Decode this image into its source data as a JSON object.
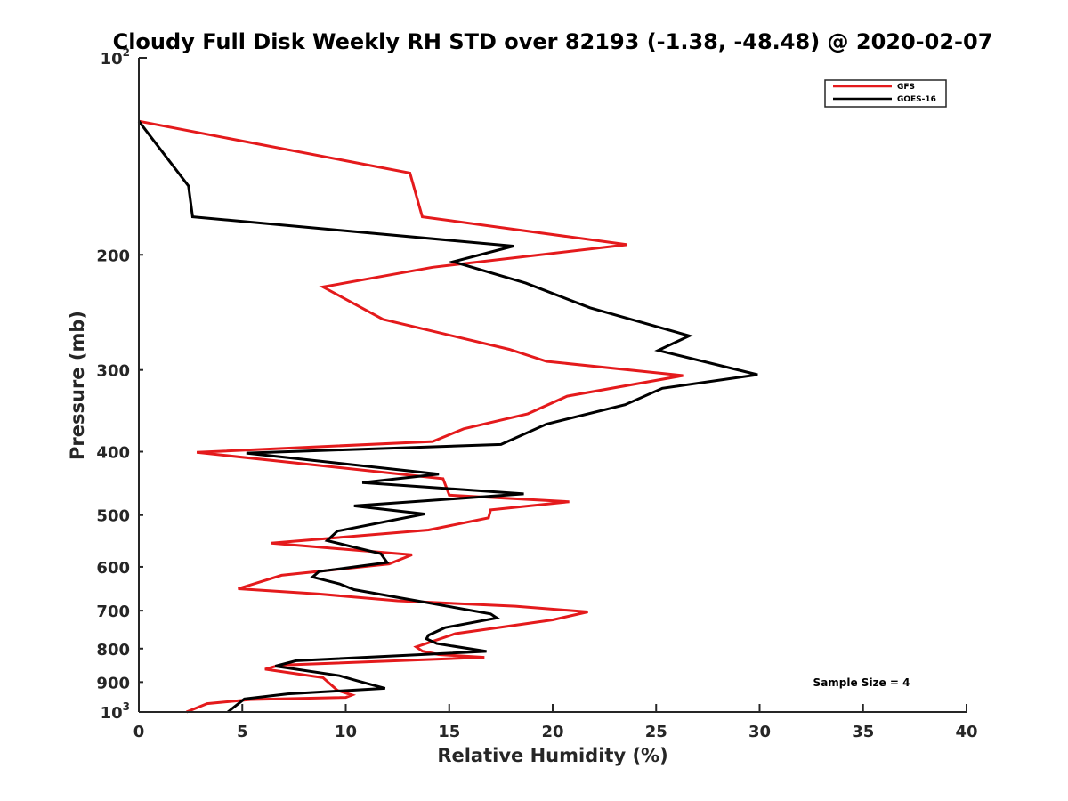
{
  "chart_data": {
    "type": "line",
    "title": "Cloudy Full Disk Weekly RH STD over 82193 (-1.38, -48.48) @ 2020-02-07",
    "xlabel": "Relative Humidity (%)",
    "ylabel": "Pressure (mb)",
    "xlim": [
      0,
      40
    ],
    "ylim": [
      100,
      1000
    ],
    "y_scale": "log",
    "y_reversed": true,
    "grid": false,
    "legend_position": "top-right",
    "x_ticks": [
      "0",
      "5",
      "10",
      "15",
      "20",
      "25",
      "30",
      "35",
      "40"
    ],
    "y_ticks": [
      {
        "value": 100,
        "base": "10",
        "exp": "2"
      },
      {
        "value": 200,
        "label": "200"
      },
      {
        "value": 300,
        "label": "300"
      },
      {
        "value": 400,
        "label": "400"
      },
      {
        "value": 500,
        "label": "500"
      },
      {
        "value": 600,
        "label": "600"
      },
      {
        "value": 700,
        "label": "700"
      },
      {
        "value": 800,
        "label": "800"
      },
      {
        "value": 900,
        "label": "900"
      },
      {
        "value": 1000,
        "base": "10",
        "exp": "3"
      }
    ],
    "annotation": "Sample Size = 4",
    "series": [
      {
        "name": "GFS",
        "color": "#e41a1c",
        "points": [
          [
            0,
            125
          ],
          [
            13.1,
            150
          ],
          [
            13.7,
            175
          ],
          [
            23.6,
            193
          ],
          [
            14.2,
            209
          ],
          [
            8.9,
            224
          ],
          [
            11.8,
            251
          ],
          [
            17.9,
            279
          ],
          [
            19.7,
            291
          ],
          [
            26.3,
            306
          ],
          [
            20.7,
            329
          ],
          [
            18.8,
            350
          ],
          [
            15.7,
            369
          ],
          [
            14.2,
            386
          ],
          [
            2.8,
            401
          ],
          [
            14.7,
            440
          ],
          [
            15.0,
            466
          ],
          [
            20.8,
            477
          ],
          [
            17.0,
            491
          ],
          [
            16.9,
            505
          ],
          [
            14.0,
            527
          ],
          [
            6.4,
            552
          ],
          [
            13.2,
            575
          ],
          [
            12.1,
            594
          ],
          [
            6.9,
            618
          ],
          [
            4.8,
            648
          ],
          [
            8.7,
            660
          ],
          [
            12.5,
            676
          ],
          [
            18.2,
            689
          ],
          [
            21.7,
            703
          ],
          [
            20.0,
            723
          ],
          [
            15.3,
            759
          ],
          [
            13.4,
            795
          ],
          [
            13.7,
            807
          ],
          [
            14.5,
            817
          ],
          [
            16.7,
            825
          ],
          [
            14.2,
            831
          ],
          [
            6.8,
            848
          ],
          [
            6.1,
            860
          ],
          [
            8.9,
            886
          ],
          [
            9.6,
            927
          ],
          [
            10.3,
            942
          ],
          [
            10.0,
            950
          ],
          [
            5.4,
            957
          ],
          [
            3.3,
            971
          ],
          [
            2.3,
            1000
          ]
        ]
      },
      {
        "name": "GOES-16",
        "color": "#000000",
        "points": [
          [
            0,
            125
          ],
          [
            2.4,
            157
          ],
          [
            2.6,
            175
          ],
          [
            18.1,
            194
          ],
          [
            15.2,
            205
          ],
          [
            18.7,
            221
          ],
          [
            21.8,
            241
          ],
          [
            26.6,
            266
          ],
          [
            25.1,
            280
          ],
          [
            29.9,
            305
          ],
          [
            25.3,
            320
          ],
          [
            23.5,
            339
          ],
          [
            19.7,
            363
          ],
          [
            17.5,
            390
          ],
          [
            5.2,
            402
          ],
          [
            14.5,
            433
          ],
          [
            10.8,
            446
          ],
          [
            18.6,
            464
          ],
          [
            10.4,
            484
          ],
          [
            13.8,
            498
          ],
          [
            9.6,
            529
          ],
          [
            9.1,
            547
          ],
          [
            11.7,
            573
          ],
          [
            12.0,
            591
          ],
          [
            8.7,
            610
          ],
          [
            8.4,
            622
          ],
          [
            9.7,
            637
          ],
          [
            10.4,
            650
          ],
          [
            17.0,
            708
          ],
          [
            17.3,
            718
          ],
          [
            14.8,
            743
          ],
          [
            14.0,
            763
          ],
          [
            13.9,
            773
          ],
          [
            14.4,
            786
          ],
          [
            16.8,
            808
          ],
          [
            7.6,
            835
          ],
          [
            6.6,
            851
          ],
          [
            9.7,
            880
          ],
          [
            10.5,
            895
          ],
          [
            11.9,
            920
          ],
          [
            7.2,
            938
          ],
          [
            5.1,
            955
          ],
          [
            4.3,
            1000
          ]
        ]
      }
    ]
  }
}
